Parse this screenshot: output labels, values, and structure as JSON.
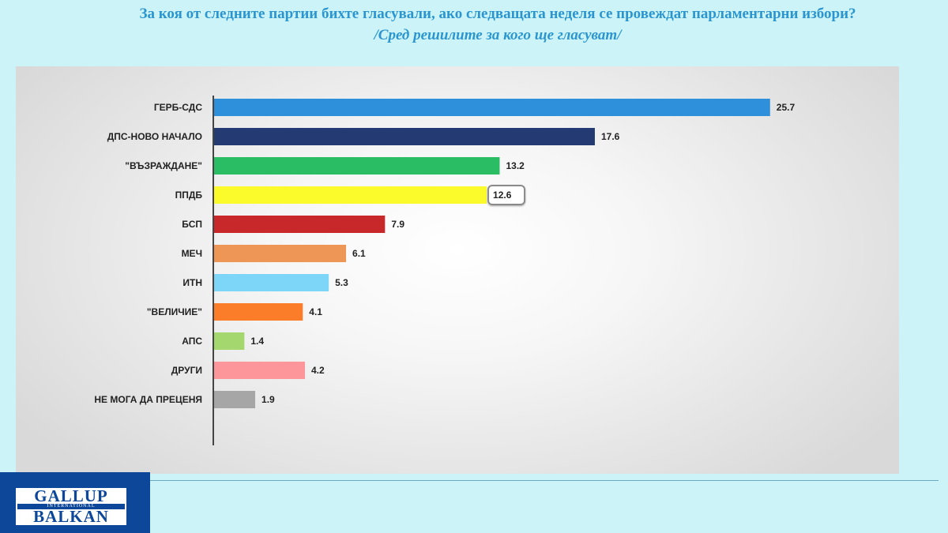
{
  "header": {
    "title": "За коя от следните партии бихте  гласували,  ако следващата неделя се провеждат парламентарни избори?",
    "subtitle": "/Сред решилите за кого ще гласуват/"
  },
  "logo": {
    "line1": "GALLUP",
    "line2": "INTERNATIONAL",
    "line3": "BALKAN"
  },
  "chart_data": {
    "type": "bar",
    "orientation": "horizontal",
    "categories": [
      "ГЕРБ-СДС",
      "ДПС-НОВО НАЧАЛО",
      "\"ВЪЗРАЖДАНЕ\"",
      "ППДБ",
      "БСП",
      "МЕЧ",
      "ИТН",
      "\"ВЕЛИЧИЕ\"",
      "АПС",
      "ДРУГИ",
      "НЕ МОГА ДА ПРЕЦЕНЯ"
    ],
    "values": [
      25.7,
      17.6,
      13.2,
      12.6,
      7.9,
      6.1,
      5.3,
      4.1,
      1.4,
      4.2,
      1.9
    ],
    "value_labels": [
      "25.7",
      "17.6",
      "13.2",
      "12.6",
      "7.9",
      "6.1",
      "5.3",
      "4.1",
      "1.4",
      "4.2",
      "1.9"
    ],
    "colors": [
      "#2e8fdb",
      "#233a72",
      "#2bbd63",
      "#fbfb2c",
      "#c8282a",
      "#ee9656",
      "#7dd6f7",
      "#fb7d2a",
      "#a4d86e",
      "#fc969b",
      "#a6a6a6"
    ],
    "highlighted_label": "12.6",
    "xlim": [
      0,
      26
    ],
    "grid": false,
    "legend": "none"
  }
}
